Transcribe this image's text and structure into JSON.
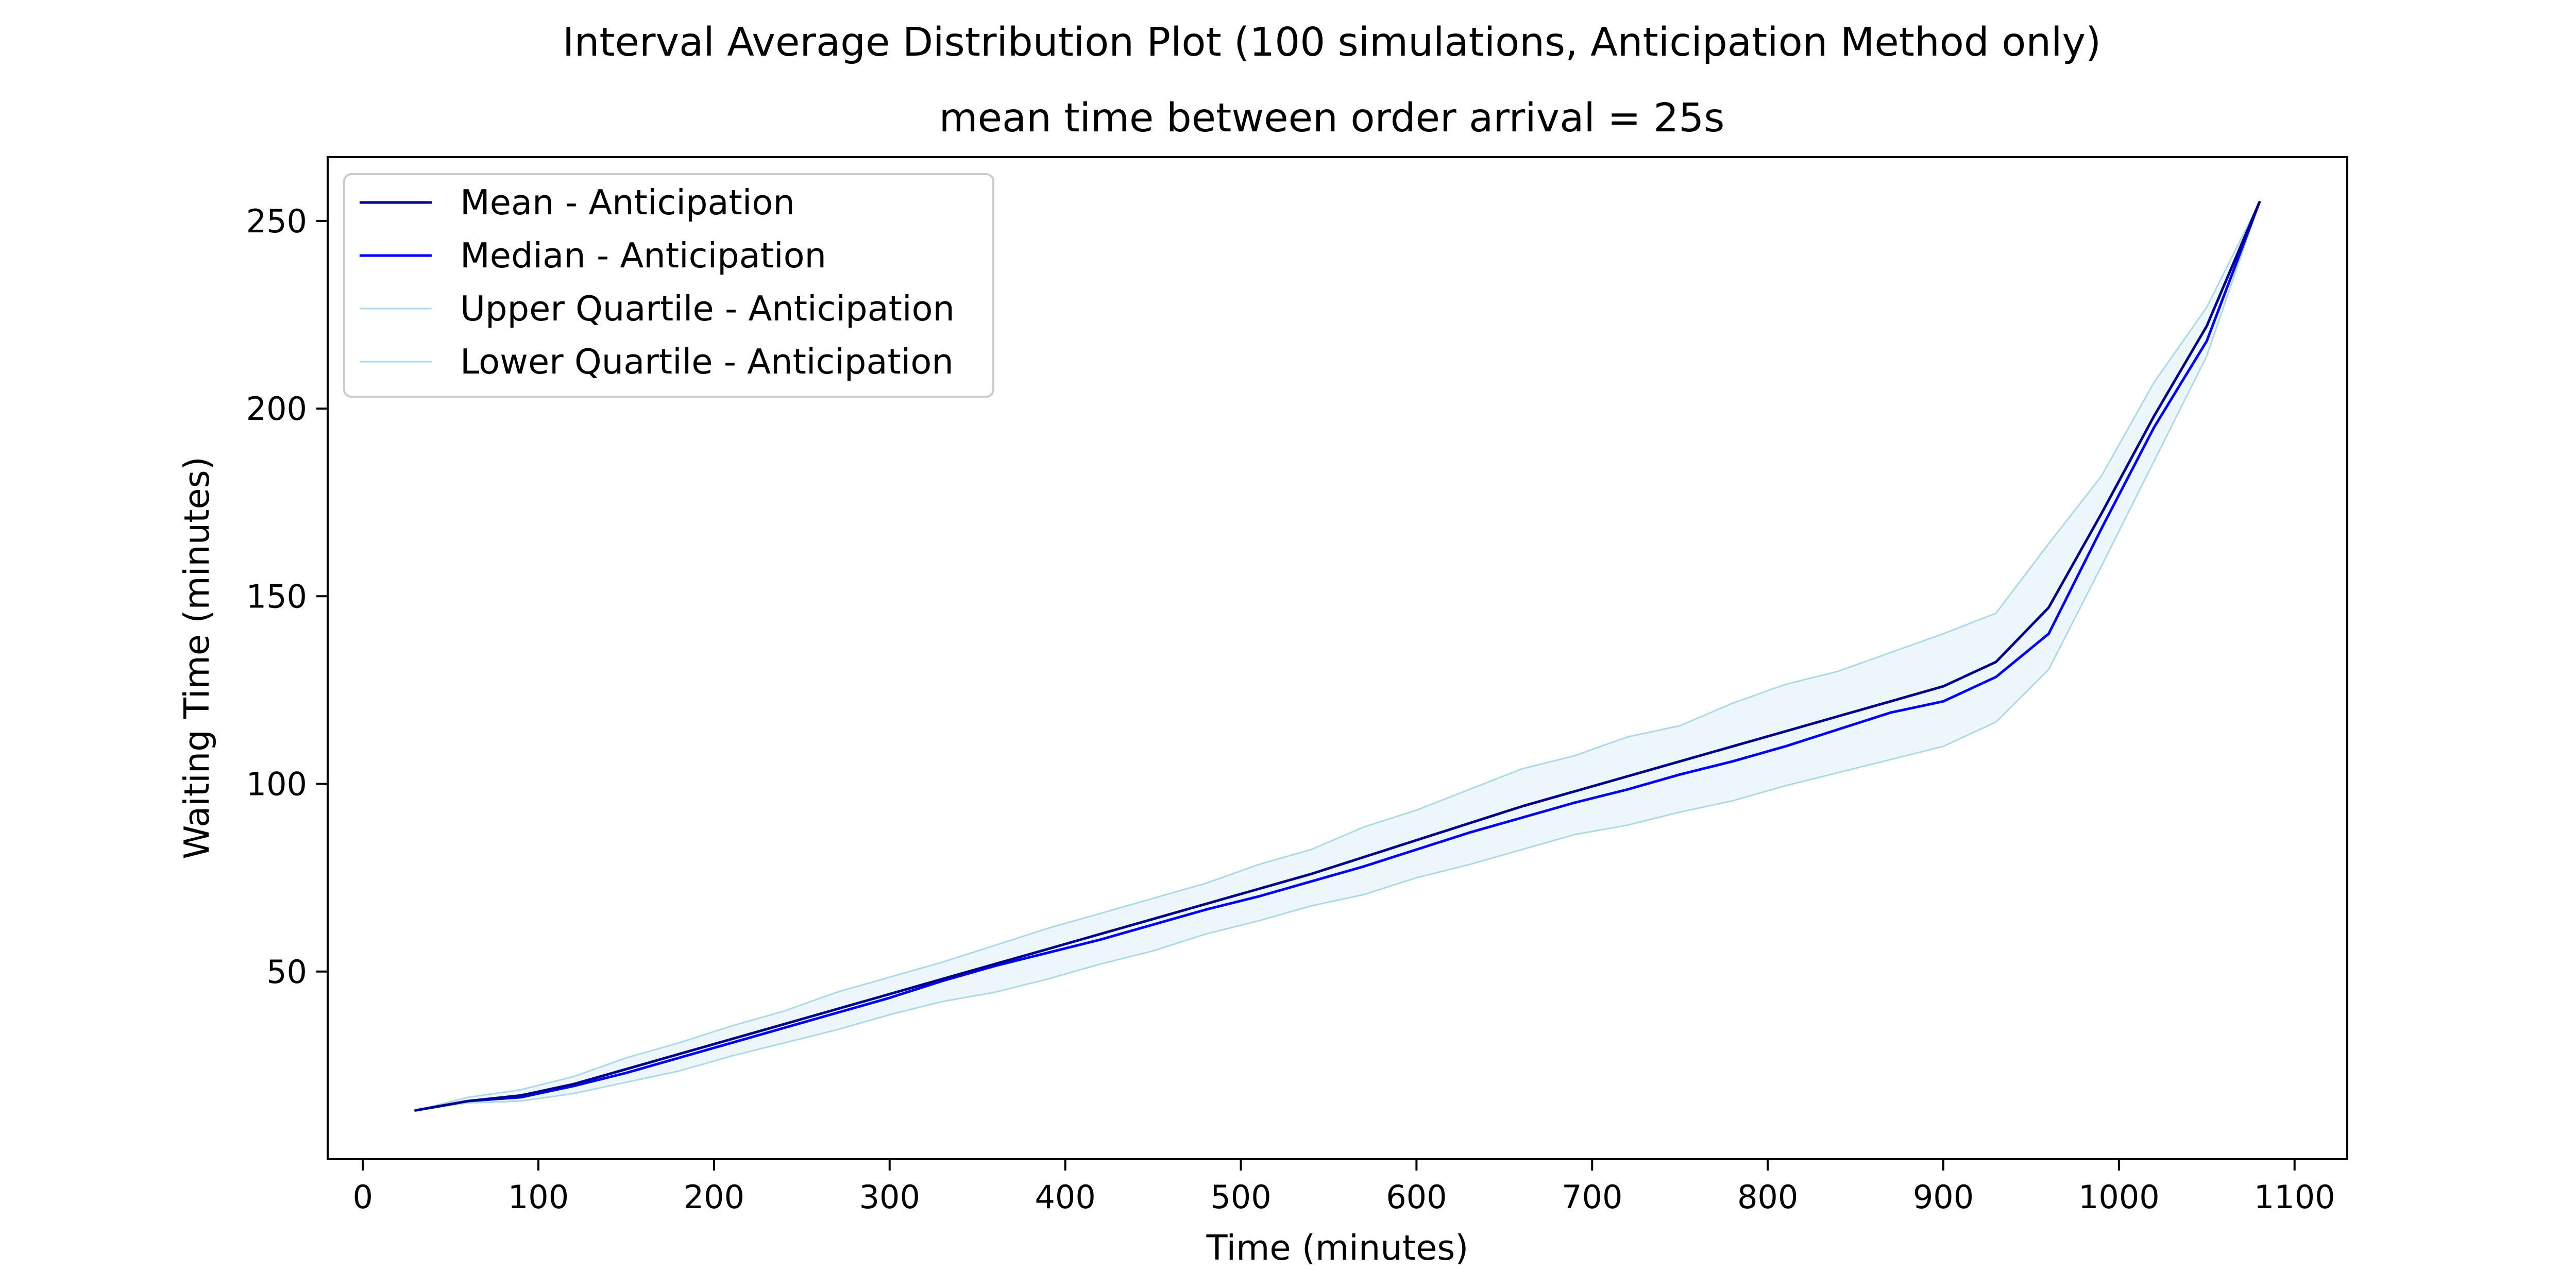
{
  "chart_data": {
    "type": "line",
    "title": "Interval Average Distribution Plot (100 simulations, Anticipation Method only)",
    "subtitle": "mean time between order arrival = 25s",
    "xlabel": "Time (minutes)",
    "ylabel": "Waiting Time (minutes)",
    "xlim": [
      -20,
      1130
    ],
    "ylim": [
      0,
      267
    ],
    "xticks": [
      0,
      100,
      200,
      300,
      400,
      500,
      600,
      700,
      800,
      900,
      1000,
      1100
    ],
    "yticks": [
      50,
      100,
      150,
      200,
      250
    ],
    "grid": false,
    "legend_position": "upper-left",
    "x": [
      30,
      60,
      90,
      120,
      150,
      180,
      210,
      240,
      270,
      300,
      330,
      360,
      390,
      420,
      450,
      480,
      510,
      540,
      570,
      600,
      630,
      660,
      690,
      720,
      750,
      780,
      810,
      840,
      870,
      900,
      930,
      960,
      990,
      1020,
      1050,
      1080
    ],
    "series": [
      {
        "name": "Mean - Anticipation",
        "color": "#00008b",
        "values": [
          13,
          15.5,
          17,
          20,
          24,
          28,
          32,
          36,
          40,
          44,
          48,
          52,
          56,
          60,
          64,
          68,
          72,
          76,
          80.5,
          85,
          89.5,
          94,
          98,
          102,
          106,
          110,
          114,
          118,
          122,
          126,
          132.5,
          147,
          172,
          198,
          222,
          255
        ]
      },
      {
        "name": "Median - Anticipation",
        "color": "#0000ff",
        "values": [
          13,
          15.5,
          16.5,
          19.5,
          23,
          27,
          31,
          35,
          39,
          43,
          47.5,
          51.5,
          55,
          58.5,
          62.5,
          66.5,
          70,
          74,
          78,
          82.5,
          87,
          91,
          95,
          98.5,
          102.5,
          106,
          110,
          114.5,
          119,
          122,
          128.5,
          140,
          168,
          195,
          218,
          255
        ]
      },
      {
        "name": "Upper Quartile - Anticipation",
        "color": "#add8e6",
        "values": [
          13,
          16.5,
          18.5,
          22,
          27,
          31,
          35.5,
          39.5,
          44.5,
          48.5,
          52.5,
          57,
          61.5,
          65.5,
          69.5,
          73.5,
          78.5,
          82.5,
          88.5,
          93,
          98.5,
          104,
          107.5,
          112.5,
          115.5,
          121.5,
          126.5,
          130,
          135,
          140,
          145.5,
          164,
          182,
          207,
          227,
          255
        ]
      },
      {
        "name": "Lower Quartile - Anticipation",
        "color": "#add8e6",
        "values": [
          13,
          15,
          15.5,
          17.5,
          20.5,
          23.5,
          27.5,
          31,
          34.5,
          38.5,
          42,
          44.5,
          48,
          52,
          55.5,
          60,
          63.5,
          67.5,
          70.5,
          75,
          78.5,
          82.5,
          86.5,
          89,
          92.5,
          95.5,
          99.5,
          103,
          106.5,
          110,
          116.5,
          130.5,
          158,
          186,
          214,
          255
        ]
      }
    ],
    "fill_between": {
      "upper_series": "Upper Quartile - Anticipation",
      "lower_series": "Lower Quartile - Anticipation",
      "color": "#add8e6",
      "opacity": 0.22
    }
  }
}
